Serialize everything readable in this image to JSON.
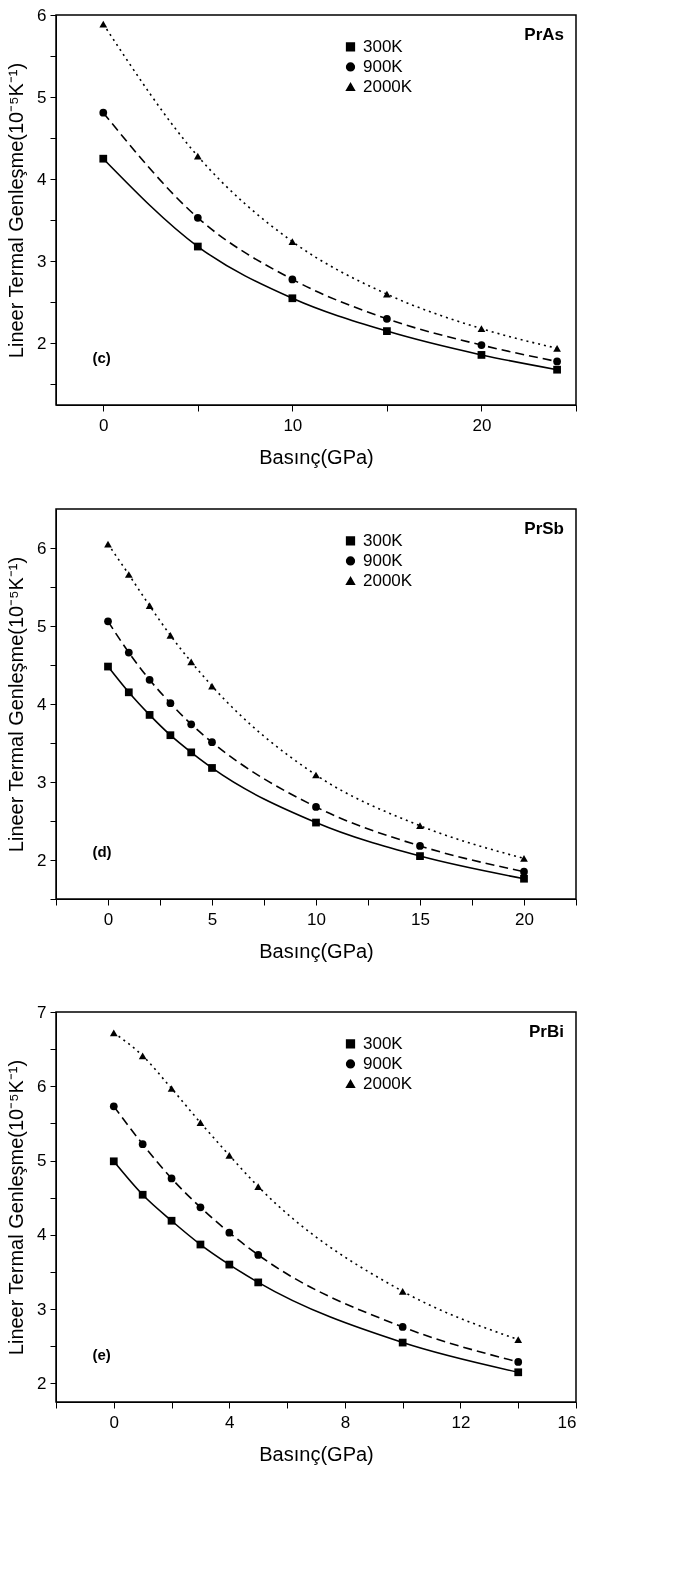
{
  "chart_data": [
    {
      "type": "line",
      "title": "PrAs",
      "xlabel": "Basınç(GPa)",
      "ylabel": "Lineer Termal Genleşme(10⁻⁵K⁻¹)",
      "annotations": [
        "(c)"
      ],
      "legend": "top right",
      "grid": false,
      "xlim": [
        -2.5,
        25
      ],
      "xticks": [
        0,
        {
          "value": 5,
          "label": null
        },
        10,
        {
          "value": 15,
          "label": null
        },
        20,
        {
          "value": 25,
          "label": null
        }
      ],
      "ylim": [
        1.25,
        6
      ],
      "yticks": [
        {
          "value": 1.5,
          "label": null
        },
        2,
        {
          "value": 2.5,
          "label": null
        },
        3,
        {
          "value": 3.5,
          "label": null
        },
        4,
        {
          "value": 4.5,
          "label": null
        },
        5,
        {
          "value": 5.5,
          "label": null
        },
        6
      ],
      "x": [
        0,
        5,
        10,
        15,
        20,
        24
      ],
      "series": [
        {
          "name": "300K",
          "color": "#000000",
          "marker": "square",
          "line_style": "solid",
          "values": [
            4.25,
            3.18,
            2.55,
            2.15,
            1.86,
            1.68
          ]
        },
        {
          "name": "900K",
          "color": "#000000",
          "marker": "circle",
          "line_style": "dashed",
          "values": [
            4.81,
            3.53,
            2.78,
            2.3,
            1.98,
            1.78
          ]
        },
        {
          "name": "2000K",
          "color": "#000000",
          "marker": "triangle",
          "line_style": "dotted",
          "values": [
            5.89,
            4.28,
            3.24,
            2.6,
            2.18,
            1.94
          ]
        }
      ]
    },
    {
      "type": "line",
      "title": "PrSb",
      "xlabel": "Basınç(GPa)",
      "ylabel": "Lineer Termal Genleşme(10⁻⁵K⁻¹)",
      "annotations": [
        "(d)"
      ],
      "legend": "top right",
      "grid": false,
      "xlim": [
        -2.5,
        22.5
      ],
      "xticks": [
        {
          "value": -2.5,
          "label": null
        },
        0,
        {
          "value": 2.5,
          "label": null
        },
        5,
        {
          "value": 7.5,
          "label": null
        },
        10,
        {
          "value": 12.5,
          "label": null
        },
        15,
        {
          "value": 17.5,
          "label": null
        },
        20,
        {
          "value": 22.5,
          "label": null
        }
      ],
      "ylim": [
        1.5,
        6.5
      ],
      "yticks": [
        {
          "value": 1.5,
          "label": null
        },
        2,
        {
          "value": 2.5,
          "label": null
        },
        3,
        {
          "value": 3.5,
          "label": null
        },
        4,
        {
          "value": 4.5,
          "label": null
        },
        5,
        {
          "value": 5.5,
          "label": null
        },
        6
      ],
      "x": [
        0,
        1,
        2,
        3,
        4,
        5,
        10,
        15,
        20
      ],
      "series": [
        {
          "name": "300K",
          "color": "#000000",
          "marker": "square",
          "line_style": "solid",
          "values": [
            4.48,
            4.15,
            3.86,
            3.6,
            3.38,
            3.18,
            2.48,
            2.05,
            1.76
          ]
        },
        {
          "name": "900K",
          "color": "#000000",
          "marker": "circle",
          "line_style": "dashed",
          "values": [
            5.06,
            4.66,
            4.31,
            4.01,
            3.74,
            3.51,
            2.68,
            2.18,
            1.85
          ]
        },
        {
          "name": "2000K",
          "color": "#000000",
          "marker": "triangle",
          "line_style": "dotted",
          "values": [
            6.05,
            5.66,
            5.26,
            4.88,
            4.54,
            4.23,
            3.09,
            2.44,
            2.02
          ]
        }
      ]
    },
    {
      "type": "line",
      "title": "PrBi",
      "xlabel": "Basınç(GPa)",
      "ylabel": "Lineer Termal Genleşme(10⁻⁵K⁻¹)",
      "annotations": [
        "(e)"
      ],
      "legend": "top right",
      "grid": false,
      "xlim": [
        -2,
        16
      ],
      "xticks": [
        {
          "value": -2,
          "label": null
        },
        0,
        {
          "value": 2,
          "label": null
        },
        4,
        {
          "value": 6,
          "label": null
        },
        8,
        {
          "value": 10,
          "label": null
        },
        12,
        {
          "value": 14,
          "label": null
        },
        16
      ],
      "ylim": [
        1.75,
        7
      ],
      "yticks": [
        2,
        {
          "value": 2.5,
          "label": null
        },
        3,
        {
          "value": 3.5,
          "label": null
        },
        4,
        {
          "value": 4.5,
          "label": null
        },
        5,
        {
          "value": 5.5,
          "label": null
        },
        6,
        {
          "value": 6.5,
          "label": null
        },
        7
      ],
      "x": [
        0,
        1,
        2,
        3,
        4,
        5,
        10,
        14
      ],
      "series": [
        {
          "name": "300K",
          "color": "#000000",
          "marker": "square",
          "line_style": "solid",
          "values": [
            4.99,
            4.54,
            4.19,
            3.87,
            3.6,
            3.36,
            2.55,
            2.15
          ]
        },
        {
          "name": "900K",
          "color": "#000000",
          "marker": "circle",
          "line_style": "dashed",
          "values": [
            5.73,
            5.22,
            4.76,
            4.37,
            4.03,
            3.73,
            2.76,
            2.29
          ]
        },
        {
          "name": "2000K",
          "color": "#000000",
          "marker": "triangle",
          "line_style": "dotted",
          "values": [
            6.72,
            6.41,
            5.97,
            5.51,
            5.07,
            4.65,
            3.24,
            2.59
          ]
        }
      ]
    }
  ]
}
